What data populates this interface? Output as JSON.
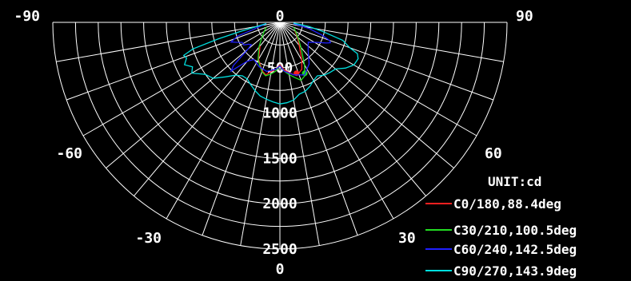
{
  "chart_data": {
    "type": "polar-line",
    "unit_label": "UNIT:cd",
    "rmax": 2500,
    "ring_step": 250,
    "radial_ticks": [
      500,
      1000,
      1500,
      2000,
      2500
    ],
    "radial_tick_labels": [
      "500",
      "1000",
      "1500",
      "2000",
      "2500"
    ],
    "angle_step_deg": 10,
    "angle_labels": [
      {
        "angle": -90,
        "text": "-90"
      },
      {
        "angle": 90,
        "text": "90"
      },
      {
        "angle": 0,
        "text": "0"
      },
      {
        "angle": -60,
        "text": "-60"
      },
      {
        "angle": 60,
        "text": "60"
      },
      {
        "angle": -30,
        "text": "-30"
      },
      {
        "angle": 30,
        "text": "30"
      },
      {
        "angle": 180,
        "text": "0"
      }
    ],
    "series": [
      {
        "name": "C0/180,88.4deg",
        "color": "#ff2020",
        "points": [
          [
            -40,
            340
          ],
          [
            -30,
            470
          ],
          [
            -20,
            570
          ],
          [
            -15,
            600
          ],
          [
            -10,
            550
          ],
          [
            -5,
            520
          ],
          [
            0,
            470
          ],
          [
            5,
            525
          ],
          [
            10,
            560
          ],
          [
            15,
            600
          ],
          [
            20,
            600
          ],
          [
            25,
            570
          ],
          [
            30,
            480
          ],
          [
            40,
            330
          ],
          [
            50,
            250
          ],
          [
            60,
            190
          ]
        ],
        "marker": {
          "angle": 18,
          "value": 590
        }
      },
      {
        "name": "C30/210,100.5deg",
        "color": "#22dd22",
        "points": [
          [
            -70,
            160
          ],
          [
            -60,
            200
          ],
          [
            -50,
            260
          ],
          [
            -40,
            360
          ],
          [
            -30,
            480
          ],
          [
            -20,
            580
          ],
          [
            -15,
            610
          ],
          [
            -10,
            580
          ],
          [
            -5,
            540
          ],
          [
            0,
            480
          ],
          [
            5,
            540
          ],
          [
            10,
            585
          ],
          [
            15,
            630
          ],
          [
            20,
            680
          ],
          [
            25,
            650
          ],
          [
            30,
            540
          ],
          [
            40,
            360
          ],
          [
            50,
            260
          ],
          [
            60,
            200
          ],
          [
            70,
            160
          ]
        ],
        "marker": {
          "angle": 26,
          "value": 625
        }
      },
      {
        "name": "C60/240,142.5deg",
        "color": "#2020ff",
        "points": [
          [
            -85,
            150
          ],
          [
            -80,
            200
          ],
          [
            -75,
            300
          ],
          [
            -72,
            490
          ],
          [
            -68,
            580
          ],
          [
            -65,
            520
          ],
          [
            -62,
            470
          ],
          [
            -58,
            470
          ],
          [
            -55,
            420
          ],
          [
            -52,
            400
          ],
          [
            -50,
            460
          ],
          [
            -47,
            700
          ],
          [
            -45,
            760
          ],
          [
            -40,
            560
          ],
          [
            -35,
            500
          ],
          [
            -25,
            540
          ],
          [
            -15,
            560
          ],
          [
            -5,
            520
          ],
          [
            0,
            480
          ],
          [
            5,
            540
          ],
          [
            15,
            600
          ],
          [
            25,
            640
          ],
          [
            35,
            560
          ],
          [
            45,
            440
          ],
          [
            55,
            380
          ],
          [
            62,
            470
          ],
          [
            66,
            560
          ],
          [
            68,
            600
          ],
          [
            70,
            580
          ],
          [
            73,
            490
          ],
          [
            78,
            330
          ],
          [
            85,
            150
          ]
        ]
      },
      {
        "name": "C90/270,143.9deg",
        "color": "#00e0e0",
        "points": [
          [
            -85,
            150
          ],
          [
            -80,
            250
          ],
          [
            -77,
            450
          ],
          [
            -75,
            700
          ],
          [
            -73,
            1000
          ],
          [
            -71,
            1120
          ],
          [
            -69,
            1100
          ],
          [
            -66,
            1150
          ],
          [
            -63,
            1080
          ],
          [
            -60,
            1120
          ],
          [
            -55,
            1000
          ],
          [
            -50,
            960
          ],
          [
            -45,
            850
          ],
          [
            -40,
            760
          ],
          [
            -35,
            720
          ],
          [
            -30,
            720
          ],
          [
            -25,
            760
          ],
          [
            -20,
            800
          ],
          [
            -15,
            840
          ],
          [
            -10,
            860
          ],
          [
            -5,
            880
          ],
          [
            0,
            900
          ],
          [
            5,
            890
          ],
          [
            10,
            870
          ],
          [
            15,
            820
          ],
          [
            20,
            810
          ],
          [
            25,
            780
          ],
          [
            30,
            740
          ],
          [
            35,
            720
          ],
          [
            40,
            760
          ],
          [
            45,
            780
          ],
          [
            50,
            800
          ],
          [
            55,
            880
          ],
          [
            60,
            940
          ],
          [
            65,
            950
          ],
          [
            68,
            920
          ],
          [
            70,
            820
          ],
          [
            74,
            720
          ],
          [
            78,
            480
          ],
          [
            82,
            320
          ],
          [
            87,
            150
          ]
        ]
      }
    ]
  }
}
